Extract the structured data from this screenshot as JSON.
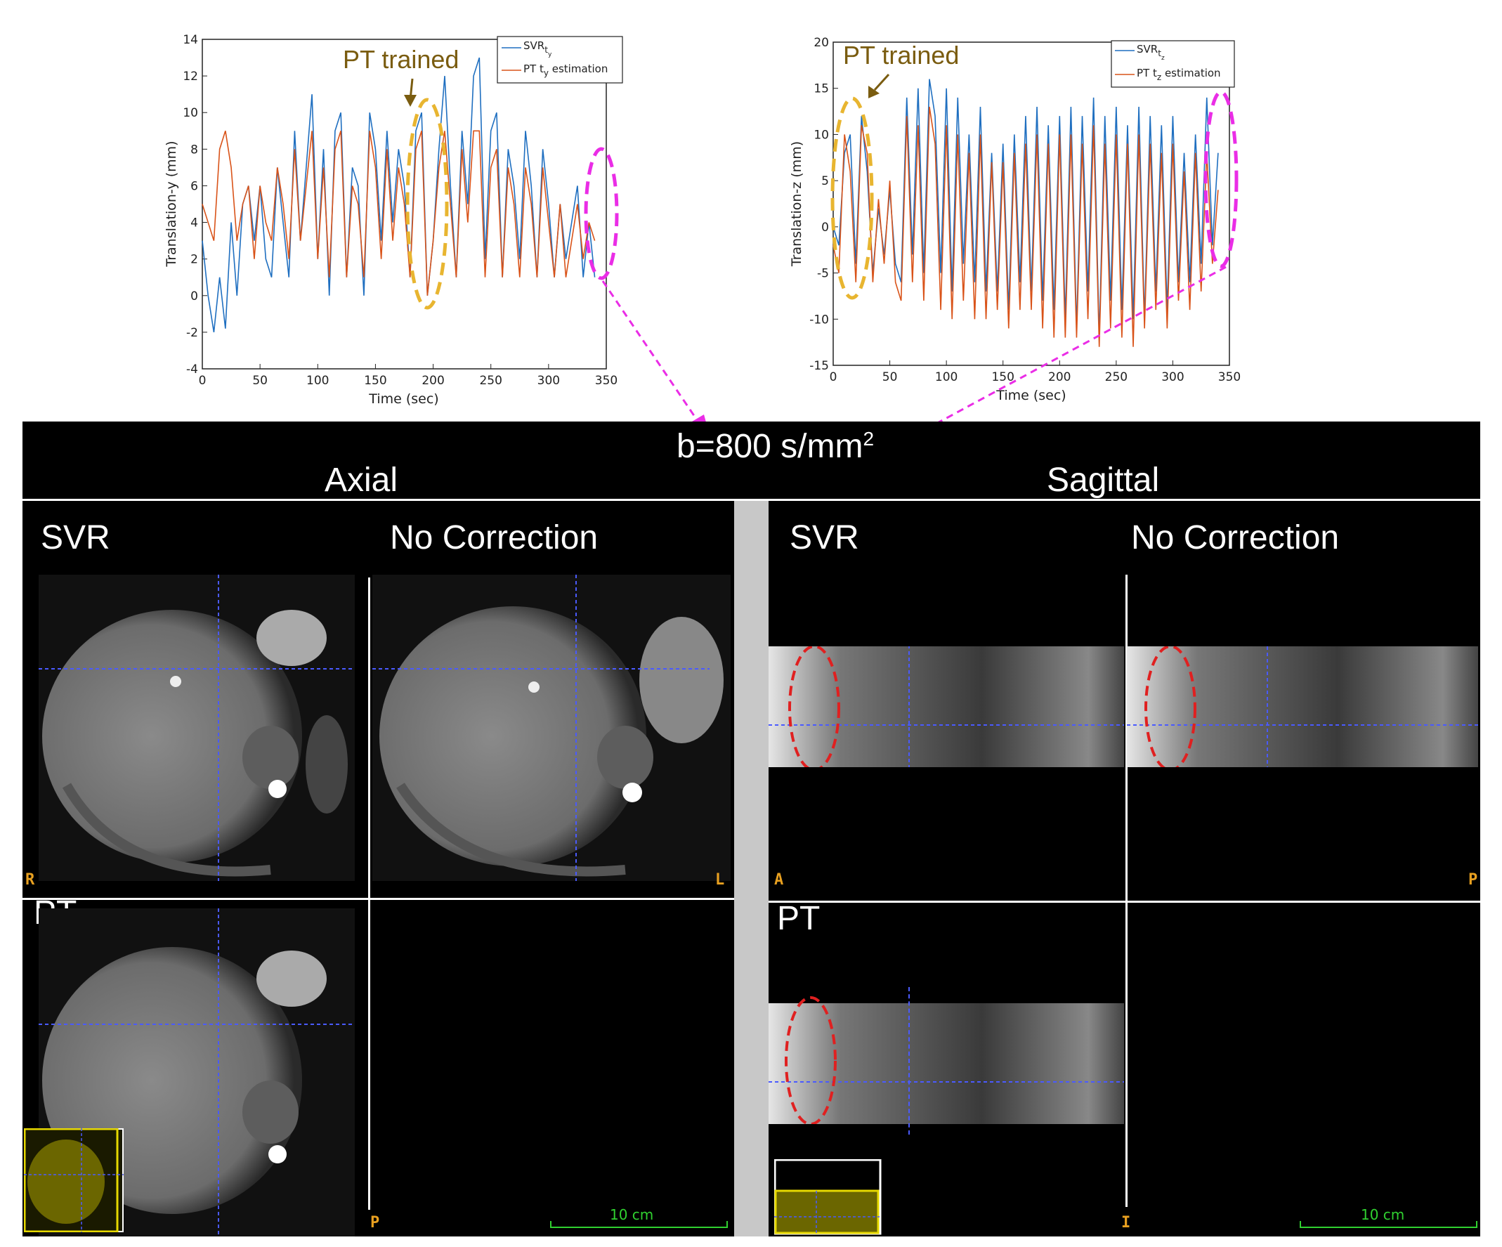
{
  "top_plots": [
    {
      "ylabel": "Translation-y (mm)",
      "xlabel": "Time (sec)",
      "xticks": [
        "0",
        "50",
        "100",
        "150",
        "200",
        "250",
        "300",
        "350"
      ],
      "yticks": [
        "-4",
        "-2",
        "0",
        "2",
        "4",
        "6",
        "8",
        "10",
        "12",
        "14"
      ],
      "legend": [
        {
          "main": "SVR",
          "sub": "t",
          "subsub": "y",
          "tail": ""
        },
        {
          "main": "PT t",
          "sub": "y",
          "subsub": "",
          "tail": " estimation"
        }
      ],
      "annotation": "PT trained"
    },
    {
      "ylabel": "Translation-z (mm)",
      "xlabel": "Time (sec)",
      "xticks": [
        "0",
        "50",
        "100",
        "150",
        "200",
        "250",
        "300",
        "350"
      ],
      "yticks": [
        "-15",
        "-10",
        "-5",
        "0",
        "5",
        "10",
        "15",
        "20"
      ],
      "legend": [
        {
          "main": "SVR",
          "sub": "t",
          "subsub": "z",
          "tail": ""
        },
        {
          "main": "PT t",
          "sub": "z",
          "subsub": "",
          "tail": " estimation"
        }
      ],
      "annotation": "PT trained"
    }
  ],
  "chart_data": [
    {
      "type": "line",
      "xlabel": "Time (sec)",
      "ylabel": "Translation-y (mm)",
      "xlim": [
        0,
        350
      ],
      "ylim": [
        -4,
        14
      ],
      "series": [
        {
          "name": "SVR t_y",
          "color": "#1f6fc0",
          "x": [
            0,
            5,
            10,
            15,
            20,
            25,
            30,
            35,
            40,
            45,
            50,
            55,
            60,
            65,
            70,
            75,
            80,
            85,
            90,
            95,
            100,
            105,
            110,
            115,
            120,
            125,
            130,
            135,
            140,
            145,
            150,
            155,
            160,
            165,
            170,
            175,
            180,
            185,
            190,
            195,
            200,
            205,
            210,
            215,
            220,
            225,
            230,
            235,
            240,
            245,
            250,
            255,
            260,
            265,
            270,
            275,
            280,
            285,
            290,
            295,
            300,
            305,
            310,
            315,
            320,
            325,
            330,
            335,
            340
          ],
          "y": [
            3,
            0,
            -2,
            1,
            -1.8,
            4,
            0,
            5,
            6,
            3,
            6,
            2,
            1,
            7,
            4,
            1,
            9,
            3,
            7,
            11,
            2,
            8,
            0,
            9,
            10,
            1,
            7,
            6,
            0,
            10,
            8,
            3,
            9,
            4,
            8,
            6,
            1,
            9,
            10,
            0,
            3,
            8,
            12,
            6,
            1,
            9,
            5,
            12,
            13,
            2,
            9,
            10,
            1,
            8,
            6,
            2,
            9,
            6,
            1,
            8,
            5,
            1,
            5,
            2,
            4,
            6,
            1,
            4,
            1
          ]
        },
        {
          "name": "PT t_y estimation",
          "color": "#d95319",
          "x": [
            0,
            5,
            10,
            15,
            20,
            25,
            30,
            35,
            40,
            45,
            50,
            55,
            60,
            65,
            70,
            75,
            80,
            85,
            90,
            95,
            100,
            105,
            110,
            115,
            120,
            125,
            130,
            135,
            140,
            145,
            150,
            155,
            160,
            165,
            170,
            175,
            180,
            185,
            190,
            195,
            200,
            205,
            210,
            215,
            220,
            225,
            230,
            235,
            240,
            245,
            250,
            255,
            260,
            265,
            270,
            275,
            280,
            285,
            290,
            295,
            300,
            305,
            310,
            315,
            320,
            325,
            330,
            335,
            340
          ],
          "y": [
            5,
            4,
            3,
            8,
            9,
            7,
            3,
            5,
            6,
            2,
            6,
            4,
            3,
            7,
            5,
            2,
            8,
            3,
            6,
            9,
            2,
            7,
            1,
            8,
            9,
            1,
            6,
            5,
            1,
            9,
            7,
            2,
            8,
            3,
            7,
            5,
            1,
            8,
            9,
            0,
            3,
            7,
            9,
            5,
            1,
            8,
            4,
            9,
            9,
            1,
            7,
            8,
            1,
            7,
            5,
            1,
            7,
            5,
            1,
            7,
            4,
            1,
            5,
            1,
            3,
            5,
            2,
            4,
            3
          ]
        }
      ]
    },
    {
      "type": "line",
      "xlabel": "Time (sec)",
      "ylabel": "Translation-z (mm)",
      "xlim": [
        0,
        350
      ],
      "ylim": [
        -15,
        20
      ],
      "series": [
        {
          "name": "SVR t_z",
          "color": "#1f6fc0",
          "x": [
            0,
            5,
            10,
            15,
            20,
            25,
            30,
            35,
            40,
            45,
            50,
            55,
            60,
            65,
            70,
            75,
            80,
            85,
            90,
            95,
            100,
            105,
            110,
            115,
            120,
            125,
            130,
            135,
            140,
            145,
            150,
            155,
            160,
            165,
            170,
            175,
            180,
            185,
            190,
            195,
            200,
            205,
            210,
            215,
            220,
            225,
            230,
            235,
            240,
            245,
            250,
            255,
            260,
            265,
            270,
            275,
            280,
            285,
            290,
            295,
            300,
            305,
            310,
            315,
            320,
            325,
            330,
            335,
            340
          ],
          "y": [
            0,
            -2,
            8,
            10,
            -4,
            12,
            6,
            -5,
            2,
            -3,
            4,
            -4,
            -6,
            14,
            -3,
            15,
            -5,
            16,
            12,
            -5,
            15,
            -7,
            14,
            -4,
            10,
            -6,
            13,
            -7,
            8,
            -7,
            9,
            -9,
            10,
            -6,
            12,
            -7,
            13,
            -8,
            11,
            -9,
            12,
            -10,
            13,
            -11,
            12,
            -7,
            14,
            -12,
            12,
            -8,
            13,
            -9,
            11,
            -10,
            13,
            -10,
            12,
            -7,
            11,
            -9,
            12,
            -6,
            8,
            -6,
            10,
            -4,
            14,
            -2,
            8
          ]
        },
        {
          "name": "PT t_z estimation",
          "color": "#d95319",
          "x": [
            0,
            5,
            10,
            15,
            20,
            25,
            30,
            35,
            40,
            45,
            50,
            55,
            60,
            65,
            70,
            75,
            80,
            85,
            90,
            95,
            100,
            105,
            110,
            115,
            120,
            125,
            130,
            135,
            140,
            145,
            150,
            155,
            160,
            165,
            170,
            175,
            180,
            185,
            190,
            195,
            200,
            205,
            210,
            215,
            220,
            225,
            230,
            235,
            240,
            245,
            250,
            255,
            260,
            265,
            270,
            275,
            280,
            285,
            290,
            295,
            300,
            305,
            310,
            315,
            320,
            325,
            330,
            335,
            340
          ],
          "y": [
            -2,
            -5,
            10,
            6,
            -6,
            11,
            8,
            -6,
            3,
            -4,
            5,
            -6,
            -8,
            12,
            -6,
            11,
            -8,
            13,
            9,
            -9,
            11,
            -10,
            10,
            -8,
            8,
            -10,
            10,
            -10,
            7,
            -9,
            7,
            -11,
            8,
            -9,
            9,
            -9,
            10,
            -11,
            9,
            -12,
            10,
            -12,
            10,
            -12,
            9,
            -10,
            11,
            -13,
            9,
            -11,
            10,
            -12,
            9,
            -13,
            10,
            -11,
            9,
            -9,
            8,
            -11,
            9,
            -8,
            6,
            -9,
            8,
            -7,
            8,
            -4,
            4
          ]
        }
      ]
    }
  ],
  "banner": {
    "b_text": "b=800 s/mm",
    "b_sup": "2"
  },
  "sections": {
    "axial": "Axial",
    "sagittal": "Sagittal"
  },
  "panels": {
    "svr_left": "SVR",
    "nocorr_left": "No Correction",
    "svr_right": "SVR",
    "nocorr_right": "No Correction",
    "pt_left": "PT",
    "pt_right": "PT"
  },
  "orientation": {
    "R": "R",
    "L": "L",
    "A": "A",
    "P": "P",
    "P2": "P",
    "I": "I"
  },
  "scalebar": {
    "left": "10 cm",
    "right": "10 cm"
  },
  "colors": {
    "svr": "#1f6fc0",
    "pt": "#d95319",
    "annotation": "#7a5c10",
    "orange_ellipse": "#e8b530",
    "magenta": "#ea2de6",
    "red_ellipse": "#e02020"
  }
}
